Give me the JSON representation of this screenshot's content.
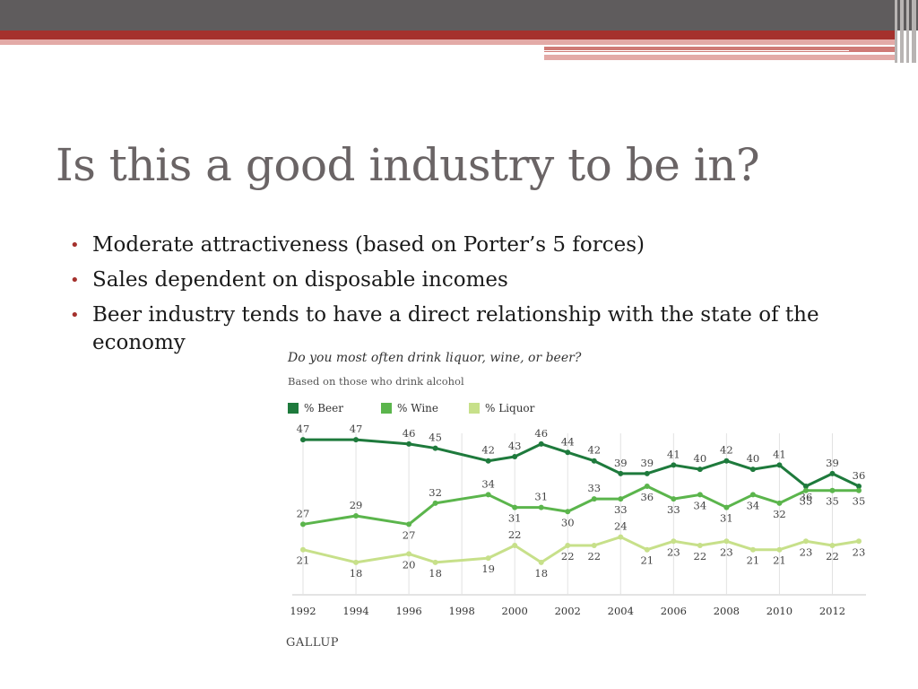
{
  "slide": {
    "title": "Is this a good industry to be in?",
    "bullets": [
      "Moderate attractiveness (based on Porter’s 5 forces)",
      "Sales dependent on disposable incomes",
      "Beer industry tends to have a direct relationship with the state of the economy"
    ],
    "colors": {
      "accent": "#a5312d",
      "title": "#6a6465",
      "topbar": "#5f5c5d"
    }
  },
  "chart_data": {
    "type": "line",
    "title": "Do you most often drink liquor, wine, or beer?",
    "subtitle": "Based on those who drink alcohol",
    "source": "GALLUP",
    "x": [
      1992,
      1994,
      1996,
      1997,
      1999,
      2000,
      2001,
      2002,
      2003,
      2004,
      2005,
      2006,
      2007,
      2008,
      2009,
      2010,
      2011,
      2012,
      2013
    ],
    "tick_labels": [
      "1992",
      "1994",
      "1996",
      "1998",
      "2000",
      "2002",
      "2004",
      "2006",
      "2008",
      "2010",
      "2012"
    ],
    "xlim": [
      1992,
      2013
    ],
    "ylim": [
      15,
      50
    ],
    "grid": "vertical",
    "legend_position": "top-left",
    "series": [
      {
        "name": "% Beer",
        "color": "#1e7a3c",
        "values": [
          47,
          47,
          46,
          45,
          42,
          43,
          46,
          44,
          42,
          39,
          39,
          41,
          40,
          42,
          40,
          41,
          36,
          39,
          36
        ]
      },
      {
        "name": "% Wine",
        "color": "#5bb54c",
        "values": [
          27,
          29,
          27,
          32,
          34,
          31,
          31,
          30,
          33,
          33,
          36,
          33,
          34,
          31,
          34,
          32,
          35,
          35,
          35
        ]
      },
      {
        "name": "% Liquor",
        "color": "#c7e08a",
        "values": [
          21,
          18,
          20,
          18,
          19,
          22,
          18,
          22,
          22,
          24,
          21,
          23,
          22,
          23,
          21,
          21,
          23,
          22,
          23
        ]
      }
    ]
  }
}
